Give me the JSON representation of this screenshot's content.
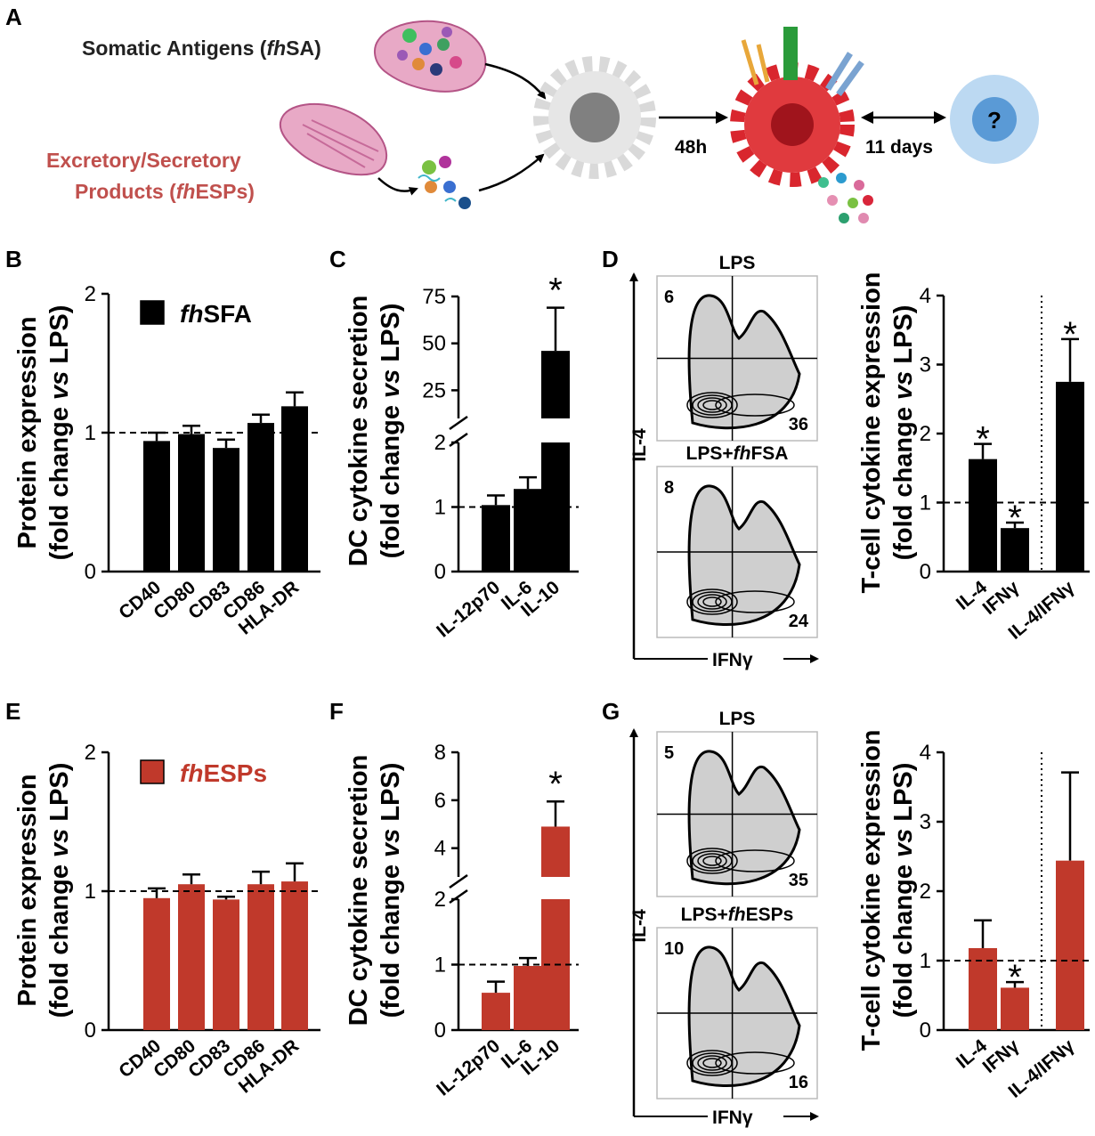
{
  "panels": {
    "a": "A",
    "b": "B",
    "c": "C",
    "d": "D",
    "e": "E",
    "f": "F",
    "g": "G"
  },
  "schematic": {
    "somatic_label_prefix": "Somatic Antigens (",
    "somatic_label_italic": "fh",
    "somatic_label_suffix": "SA)",
    "esp_label_line1": "Excretory/Secretory",
    "esp_label_line2_prefix": "Products (",
    "esp_label_line2_italic": "fh",
    "esp_label_line2_suffix": "ESPs)",
    "time1": "48h",
    "time2": "11 days",
    "unknown": "?",
    "colors": {
      "esp_text": "#c0504d",
      "dc_mature": "#d9262e",
      "dc_immature": "#c7c7c7",
      "tcell": "#9fc8ee"
    }
  },
  "flow": {
    "axis_y": "IL-4",
    "axis_x": "IFNγ",
    "d": {
      "top": {
        "title": "LPS",
        "ul": "6",
        "lr": "36"
      },
      "bottom": {
        "title_prefix": "LPS+",
        "title_italic": "fh",
        "title_suffix": "FSA",
        "ul": "8",
        "lr": "24"
      }
    },
    "g": {
      "top": {
        "title": "LPS",
        "ul": "5",
        "lr": "35"
      },
      "bottom": {
        "title_prefix": "LPS+",
        "title_italic": "fh",
        "title_suffix": "ESPs",
        "ul": "10",
        "lr": "16"
      }
    }
  },
  "chart_data": [
    {
      "id": "B",
      "type": "bar",
      "color": "#000000",
      "ylabel_line1": "Protein expression",
      "ylabel_line2_prefix": "(fold change ",
      "ylabel_line2_italic": "vs",
      "ylabel_line2_suffix": " LPS)",
      "legend_italic": "fh",
      "legend_suffix": "SFA",
      "categories": [
        "CD40",
        "CD80",
        "CD83",
        "CD86",
        "HLA-DR"
      ],
      "values": [
        0.94,
        0.99,
        0.89,
        1.07,
        1.19
      ],
      "errors": [
        0.06,
        0.06,
        0.06,
        0.06,
        0.1
      ],
      "ylim": [
        0,
        2
      ],
      "yticks": [
        "0",
        "1",
        "2"
      ],
      "reference_line": 1
    },
    {
      "id": "C",
      "type": "bar",
      "color": "#000000",
      "broken_axis": true,
      "ylabel_line1": "DC cytokine secretion",
      "ylabel_line2_prefix": "(fold change ",
      "ylabel_line2_italic": "vs",
      "ylabel_line2_suffix": " LPS)",
      "categories": [
        "IL-12p70",
        "IL-6",
        "IL-10"
      ],
      "values": [
        1.03,
        1.28,
        46
      ],
      "errors": [
        0.15,
        0.18,
        23
      ],
      "lower_ylim": [
        0,
        2
      ],
      "lower_yticks": [
        "0",
        "1",
        "2"
      ],
      "upper_ylim": [
        10,
        75
      ],
      "upper_yticks": [
        "25",
        "50",
        "75"
      ],
      "significance": [
        "",
        "",
        "*"
      ],
      "reference_line": 1
    },
    {
      "id": "D",
      "type": "bar",
      "color": "#000000",
      "ylabel_line1": "T-cell cytokine expression",
      "ylabel_line2_prefix": "(fold change ",
      "ylabel_line2_italic": "vs",
      "ylabel_line2_suffix": " LPS)",
      "categories": [
        "IL-4",
        "IFNγ",
        "IL-4/IFNγ"
      ],
      "values": [
        1.63,
        0.63,
        2.75
      ],
      "errors": [
        0.22,
        0.08,
        0.62
      ],
      "ylim": [
        0,
        4
      ],
      "yticks": [
        "0",
        "1",
        "2",
        "3",
        "4"
      ],
      "significance": [
        "*",
        "*",
        "*"
      ],
      "reference_line": 1
    },
    {
      "id": "E",
      "type": "bar",
      "color": "#c0392b",
      "ylabel_line1": "Protein expression",
      "ylabel_line2_prefix": "(fold change ",
      "ylabel_line2_italic": "vs",
      "ylabel_line2_suffix": " LPS)",
      "legend_italic": "fh",
      "legend_suffix": "ESPs",
      "categories": [
        "CD40",
        "CD80",
        "CD83",
        "CD86",
        "HLA-DR"
      ],
      "values": [
        0.95,
        1.05,
        0.94,
        1.05,
        1.07
      ],
      "errors": [
        0.07,
        0.07,
        0.02,
        0.09,
        0.13
      ],
      "ylim": [
        0,
        2
      ],
      "yticks": [
        "0",
        "1",
        "2"
      ],
      "reference_line": 1
    },
    {
      "id": "F",
      "type": "bar",
      "color": "#c0392b",
      "broken_axis": true,
      "ylabel_line1": "DC cytokine secretion",
      "ylabel_line2_prefix": "(fold change ",
      "ylabel_line2_italic": "vs",
      "ylabel_line2_suffix": " LPS)",
      "categories": [
        "IL-12p70",
        "IL-6",
        "IL-10"
      ],
      "values": [
        0.57,
        0.98,
        4.9
      ],
      "errors": [
        0.17,
        0.12,
        1.05
      ],
      "lower_ylim": [
        0,
        2
      ],
      "lower_yticks": [
        "0",
        "1",
        "2"
      ],
      "upper_ylim": [
        2.8,
        8
      ],
      "upper_yticks": [
        "4",
        "6",
        "8"
      ],
      "significance": [
        "",
        "",
        "*"
      ],
      "reference_line": 1
    },
    {
      "id": "G",
      "type": "bar",
      "color": "#c0392b",
      "ylabel_line1": "T-cell cytokine expression",
      "ylabel_line2_prefix": "(fold change ",
      "ylabel_line2_italic": "vs",
      "ylabel_line2_suffix": " LPS)",
      "categories": [
        "IL-4",
        "IFNγ",
        "IL-4/IFNγ"
      ],
      "values": [
        1.18,
        0.61,
        2.44
      ],
      "errors": [
        0.4,
        0.08,
        1.27
      ],
      "ylim": [
        0,
        4
      ],
      "yticks": [
        "0",
        "1",
        "2",
        "3",
        "4"
      ],
      "significance": [
        "",
        "*",
        ""
      ],
      "reference_line": 1
    }
  ]
}
